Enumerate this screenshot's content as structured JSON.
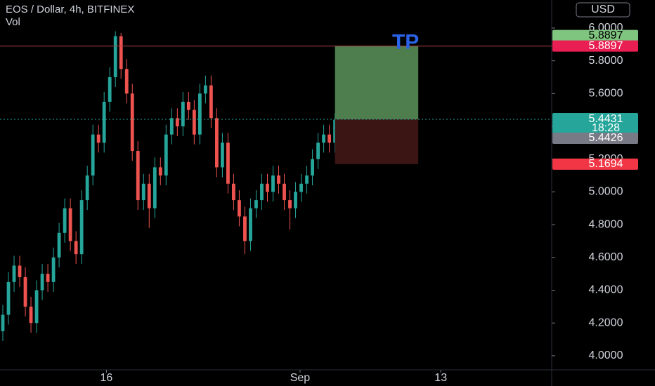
{
  "chart_data": {
    "type": "candlestick",
    "title": "EOS / Dollar, 4h, BITFINEX",
    "indicator": "Vol",
    "currency": "USD",
    "up_color": "#26a69a",
    "down_color": "#ef5350",
    "open": [
      4.15,
      4.25,
      4.45,
      4.55,
      4.48,
      4.3,
      4.2,
      4.4,
      4.5,
      4.45,
      4.6,
      4.75,
      4.9,
      4.7,
      4.62,
      4.95,
      5.1,
      5.35,
      5.3,
      5.55,
      5.7,
      5.95,
      5.75,
      5.6,
      5.25,
      4.95,
      5.05,
      4.9,
      5.15,
      5.1,
      5.35,
      5.45,
      5.4,
      5.55,
      5.5,
      5.35,
      5.6,
      5.65,
      5.45,
      5.15,
      5.3,
      5.05,
      4.95,
      4.85,
      4.7,
      4.9,
      4.95,
      5.05,
      5.0,
      5.1,
      5.05,
      4.95,
      4.9,
      5.0,
      5.05,
      5.1,
      5.2,
      5.3,
      5.35,
      5.3
    ],
    "high": [
      4.31,
      4.51,
      4.61,
      4.61,
      4.54,
      4.36,
      4.46,
      4.56,
      4.56,
      4.66,
      4.81,
      4.96,
      4.96,
      4.76,
      5.01,
      5.16,
      5.41,
      5.41,
      5.61,
      5.76,
      5.98,
      5.97,
      5.81,
      5.66,
      5.31,
      5.11,
      5.11,
      5.21,
      5.21,
      5.41,
      5.51,
      5.51,
      5.61,
      5.61,
      5.56,
      5.66,
      5.71,
      5.71,
      5.51,
      5.36,
      5.36,
      5.11,
      5.01,
      4.91,
      4.96,
      5.01,
      5.11,
      5.11,
      5.16,
      5.16,
      5.11,
      5.01,
      5.06,
      5.11,
      5.16,
      5.26,
      5.36,
      5.41,
      5.41,
      5.48
    ],
    "low": [
      4.09,
      4.19,
      4.39,
      4.42,
      4.24,
      4.14,
      4.14,
      4.34,
      4.39,
      4.39,
      4.54,
      4.69,
      4.64,
      4.56,
      4.56,
      4.89,
      5.04,
      5.24,
      5.24,
      5.49,
      5.64,
      5.69,
      5.54,
      5.19,
      4.89,
      4.89,
      4.78,
      4.84,
      5.04,
      5.04,
      5.29,
      5.34,
      5.34,
      5.44,
      5.29,
      5.29,
      5.54,
      5.39,
      5.09,
      5.09,
      4.99,
      4.89,
      4.79,
      4.62,
      4.64,
      4.84,
      4.89,
      4.94,
      4.94,
      4.99,
      4.89,
      4.77,
      4.84,
      4.94,
      4.99,
      5.04,
      5.14,
      5.24,
      5.24,
      5.24
    ],
    "close": [
      4.25,
      4.45,
      4.55,
      4.48,
      4.3,
      4.2,
      4.4,
      4.5,
      4.45,
      4.6,
      4.75,
      4.9,
      4.7,
      4.62,
      4.95,
      5.1,
      5.35,
      5.3,
      5.55,
      5.7,
      5.95,
      5.75,
      5.6,
      5.25,
      4.95,
      5.05,
      4.9,
      5.15,
      5.1,
      5.35,
      5.45,
      5.4,
      5.55,
      5.5,
      5.35,
      5.6,
      5.65,
      5.45,
      5.15,
      5.3,
      5.05,
      4.95,
      4.85,
      4.7,
      4.9,
      4.95,
      5.05,
      5.0,
      5.1,
      5.05,
      4.95,
      4.9,
      5.0,
      5.05,
      5.1,
      5.2,
      5.3,
      5.35,
      5.3,
      5.44
    ],
    "xlim": [
      0,
      98
    ],
    "xticks": [
      {
        "value": 18.9,
        "label": "16"
      },
      {
        "value": 53.3,
        "label": "Sep"
      },
      {
        "value": 78.3,
        "label": "13"
      }
    ],
    "ylim": [
      3.914,
      6.171
    ],
    "yticks": [
      {
        "value": 4,
        "label": "4.0000"
      },
      {
        "value": 4.2,
        "label": "4.2000"
      },
      {
        "value": 4.4,
        "label": "4.4000"
      },
      {
        "value": 4.6,
        "label": "4.6000"
      },
      {
        "value": 4.8,
        "label": "4.8000"
      },
      {
        "value": 5,
        "label": "5.0000"
      },
      {
        "value": 5.2,
        "label": "5.2000"
      },
      {
        "value": 5.4,
        "label": "5.4000"
      },
      {
        "value": 5.6,
        "label": "5.6000"
      },
      {
        "value": 5.8,
        "label": "5.8000"
      },
      {
        "value": 6,
        "label": "6.0000"
      }
    ],
    "position": {
      "label": "TP",
      "start": 59.5,
      "end": 74.3,
      "target": 5.8897,
      "entry": 5.4431,
      "stop": 5.1694
    },
    "last_price": 5.4431,
    "countdown": "18:28",
    "bid": 5.4426
  }
}
